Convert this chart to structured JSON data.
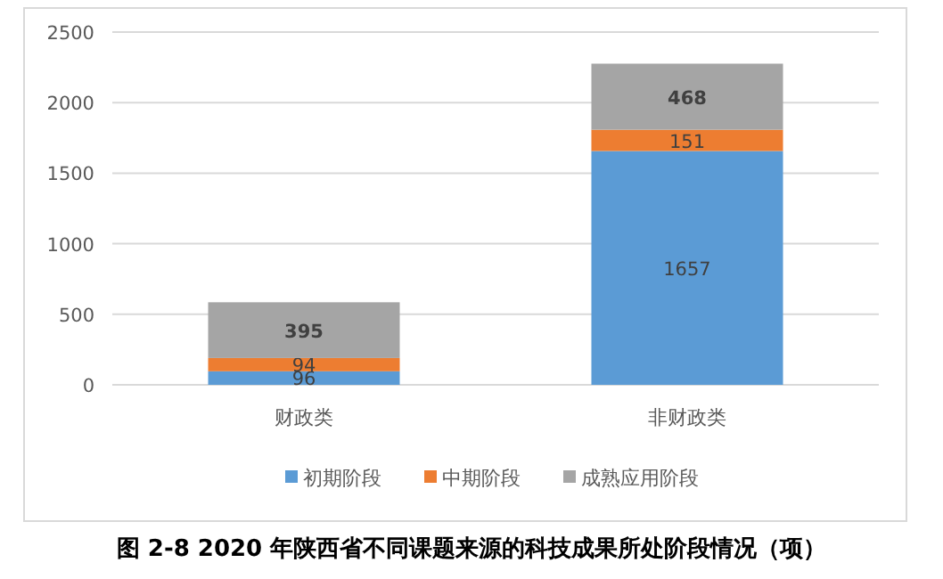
{
  "chart_data": {
    "type": "bar",
    "title": "图 2-8  2020 年陕西省不同课题来源的科技成果所处阶段情况（项）",
    "categories": [
      "财政类",
      "非财政类"
    ],
    "stacked": true,
    "data_labels": true,
    "grid": "y",
    "legend": "bottom",
    "ylim": [
      0,
      2500
    ],
    "yticks": [
      0,
      500,
      1000,
      1500,
      2000,
      2500
    ],
    "series": [
      {
        "name": "初期阶段",
        "color": "#5b9bd5",
        "values": [
          96,
          1657
        ]
      },
      {
        "name": "中期阶段",
        "color": "#ed7d31",
        "values": [
          94,
          151
        ]
      },
      {
        "name": "成熟应用阶段",
        "color": "#a5a5a5",
        "values": [
          395,
          468
        ]
      }
    ]
  }
}
